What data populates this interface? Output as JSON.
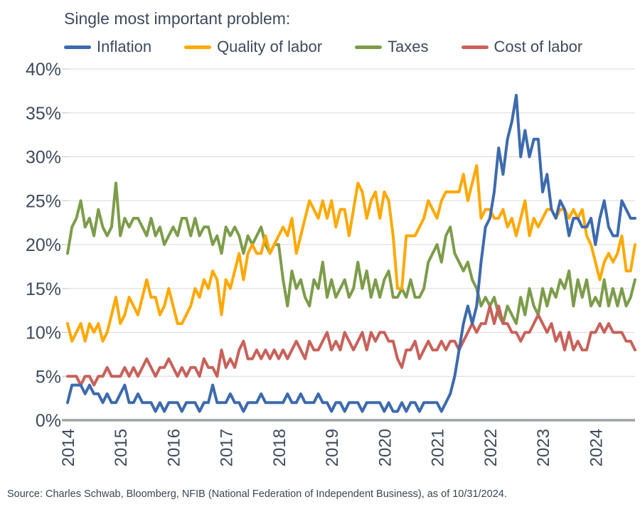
{
  "title": "Single most important problem:",
  "source": "Source: Charles Schwab, Bloomberg, NFIB (National Federation of Independent Business), as of 10/31/2024.",
  "colors": {
    "text": "#3D4A5C",
    "grid": "#D9D9D9",
    "tick": "#BFBFBF",
    "axis": "#9DA3AB",
    "background": "#FFFFFF",
    "inflation": "#3D6AAE",
    "quality_of_labor": "#FFA800",
    "taxes": "#7D9C4B",
    "cost_of_labor": "#C8615A"
  },
  "chart_data": {
    "type": "line",
    "title": "Single most important problem:",
    "x_unit": "month",
    "x_range": [
      "2014-01",
      "2024-10"
    ],
    "x_tick_labels": [
      "2014",
      "2015",
      "2016",
      "2017",
      "2018",
      "2019",
      "2020",
      "2021",
      "2022",
      "2023",
      "2024"
    ],
    "ylim": [
      0,
      40
    ],
    "y_tick_step": 5,
    "y_tick_labels": [
      "0%",
      "5%",
      "10%",
      "15%",
      "20%",
      "25%",
      "30%",
      "35%",
      "40%"
    ],
    "grid": "horizontal",
    "legend_position": "top",
    "series": [
      {
        "name": "Inflation",
        "color": "#3D6AAE",
        "values": [
          2,
          4,
          4,
          4,
          3,
          4,
          3,
          3,
          2,
          3,
          2,
          2,
          3,
          4,
          2,
          2,
          3,
          2,
          2,
          2,
          1,
          2,
          1,
          2,
          2,
          2,
          1,
          2,
          2,
          2,
          1,
          2,
          2,
          4,
          2,
          2,
          2,
          3,
          2,
          2,
          1,
          2,
          2,
          2,
          3,
          2,
          2,
          2,
          2,
          2,
          3,
          2,
          2,
          3,
          2,
          2,
          2,
          3,
          2,
          2,
          1,
          2,
          2,
          1,
          2,
          2,
          2,
          1,
          2,
          2,
          2,
          2,
          1,
          2,
          1,
          1,
          2,
          1,
          2,
          2,
          1,
          2,
          2,
          2,
          2,
          1,
          2,
          3,
          5,
          8,
          11,
          13,
          11,
          13,
          18,
          22,
          23,
          26,
          31,
          28,
          32,
          34,
          37,
          30,
          33,
          30,
          32,
          32,
          26,
          28,
          24,
          23,
          25,
          24,
          21,
          23,
          23,
          22,
          22,
          23,
          20,
          23,
          25,
          22,
          21,
          21,
          25,
          24,
          23,
          23
        ]
      },
      {
        "name": "Quality of labor",
        "color": "#FFA800",
        "values": [
          11,
          9,
          10,
          11,
          9,
          11,
          10,
          11,
          9,
          10,
          12,
          14,
          11,
          12,
          14,
          13,
          12,
          14,
          16,
          14,
          14,
          12,
          13,
          15,
          13,
          11,
          11,
          12,
          13,
          15,
          14,
          16,
          15,
          17,
          16,
          12,
          16,
          15,
          17,
          19,
          16,
          19,
          20,
          19,
          19,
          21,
          19,
          20,
          21,
          22,
          21,
          23,
          19,
          21,
          23,
          25,
          24,
          23,
          25,
          23,
          25,
          22,
          24,
          24,
          21,
          24,
          27,
          26,
          23,
          25,
          26,
          23,
          26,
          25,
          21,
          15,
          15,
          21,
          21,
          21,
          22,
          23,
          25,
          24,
          23,
          25,
          26,
          26,
          26,
          26,
          28,
          25,
          27,
          29,
          23,
          24,
          24,
          23,
          23,
          24,
          22,
          23,
          21,
          23,
          25,
          21,
          23,
          22,
          23,
          24,
          24,
          23,
          24,
          24,
          23,
          24,
          23,
          24,
          21,
          20,
          18,
          16,
          18,
          19,
          18,
          19,
          21,
          17,
          17,
          20
        ]
      },
      {
        "name": "Taxes",
        "color": "#7D9C4B",
        "values": [
          19,
          22,
          23,
          25,
          22,
          23,
          21,
          24,
          22,
          21,
          22,
          27,
          21,
          23,
          22,
          23,
          23,
          22,
          21,
          23,
          21,
          22,
          20,
          21,
          22,
          21,
          23,
          23,
          21,
          23,
          21,
          22,
          22,
          20,
          21,
          19,
          22,
          21,
          22,
          21,
          19,
          21,
          20,
          21,
          22,
          20,
          19,
          20,
          20,
          16,
          13,
          17,
          15,
          16,
          14,
          13,
          16,
          15,
          18,
          14,
          16,
          14,
          15,
          16,
          14,
          15,
          18,
          15,
          17,
          14,
          16,
          14,
          16,
          17,
          14,
          14,
          15,
          14,
          16,
          14,
          14,
          15,
          18,
          19,
          20,
          18,
          21,
          22,
          19,
          18,
          17,
          18,
          16,
          15,
          13,
          14,
          13,
          14,
          12,
          11,
          13,
          12,
          11,
          14,
          12,
          15,
          13,
          12,
          15,
          13,
          15,
          14,
          16,
          15,
          17,
          13,
          16,
          14,
          16,
          13,
          14,
          13,
          16,
          13,
          15,
          13,
          15,
          13,
          14,
          16
        ]
      },
      {
        "name": "Cost of labor",
        "color": "#C8615A",
        "values": [
          5,
          5,
          5,
          4,
          5,
          5,
          4,
          5,
          5,
          6,
          5,
          5,
          5,
          6,
          5,
          6,
          5,
          6,
          7,
          6,
          5,
          6,
          6,
          7,
          6,
          5,
          6,
          5,
          6,
          6,
          5,
          7,
          6,
          6,
          5,
          8,
          6,
          7,
          6,
          8,
          9,
          7,
          7,
          8,
          7,
          8,
          7,
          8,
          7,
          8,
          7,
          8,
          9,
          8,
          7,
          9,
          8,
          8,
          9,
          10,
          8,
          9,
          8,
          10,
          9,
          8,
          9,
          10,
          8,
          10,
          9,
          10,
          10,
          9,
          9,
          7,
          6,
          8,
          8,
          9,
          7,
          8,
          9,
          8,
          8,
          9,
          8,
          9,
          9,
          8,
          9,
          10,
          11,
          10,
          11,
          11,
          13,
          11,
          13,
          11,
          11,
          10,
          10,
          9,
          10,
          10,
          11,
          12,
          11,
          10,
          11,
          9,
          10,
          8,
          10,
          8,
          9,
          8,
          8,
          10,
          10,
          11,
          10,
          11,
          10,
          10,
          10,
          9,
          9,
          8
        ]
      }
    ]
  }
}
